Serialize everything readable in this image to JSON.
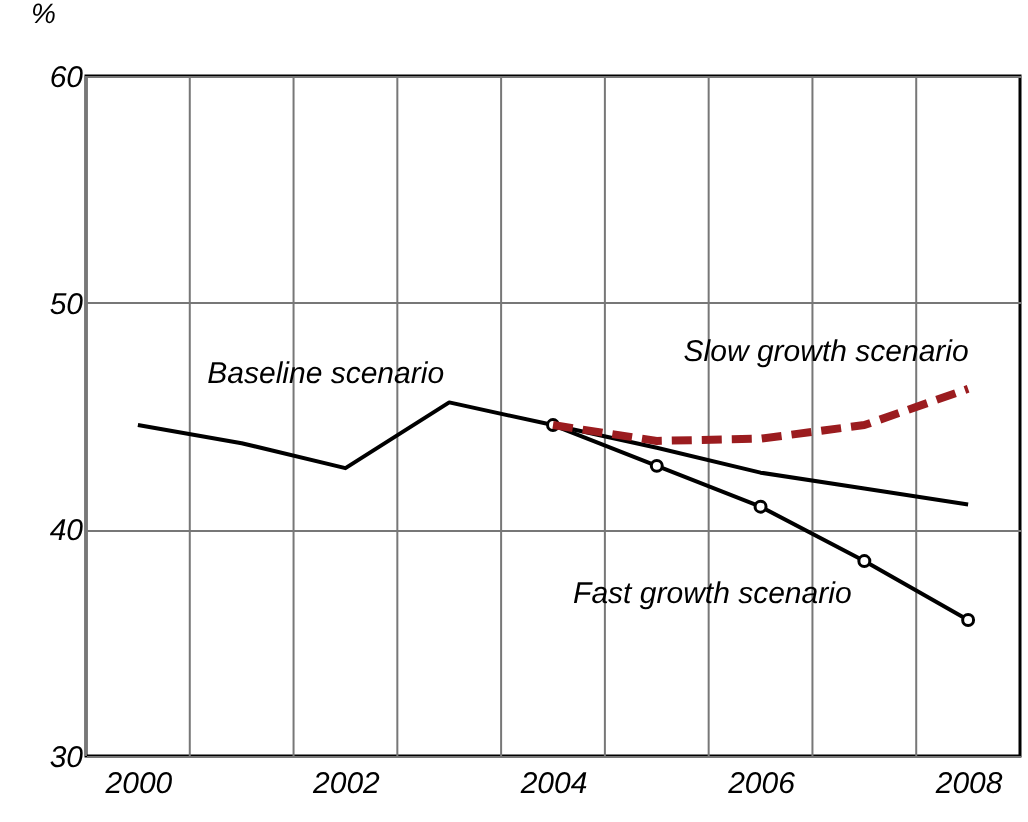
{
  "chart_data": {
    "type": "line",
    "ylabel": "%",
    "xlim": [
      1999.5,
      2008.5
    ],
    "xticks": [
      {
        "value": 1999.5,
        "label": null
      },
      {
        "value": 2000,
        "label": "2000"
      },
      {
        "value": 2000.5,
        "label": null
      },
      {
        "value": 2001.5,
        "label": null
      },
      {
        "value": 2002,
        "label": "2002"
      },
      {
        "value": 2002.5,
        "label": null
      },
      {
        "value": 2003.5,
        "label": null
      },
      {
        "value": 2004,
        "label": "2004"
      },
      {
        "value": 2004.5,
        "label": null
      },
      {
        "value": 2005.5,
        "label": null
      },
      {
        "value": 2006,
        "label": "2006"
      },
      {
        "value": 2006.5,
        "label": null
      },
      {
        "value": 2007.5,
        "label": null
      },
      {
        "value": 2008,
        "label": "2008"
      }
    ],
    "ylim": [
      30,
      60
    ],
    "yticks": [
      30,
      40,
      50,
      60
    ],
    "grid": true,
    "x": [
      2000,
      2001,
      2002,
      2003,
      2004,
      2005,
      2006,
      2007,
      2008
    ],
    "series": [
      {
        "name": "Baseline scenario",
        "color": "#000000",
        "line_style": "solid",
        "marker": "none",
        "values": [
          44.6,
          43.8,
          42.7,
          45.6,
          44.6,
          43.6,
          42.5,
          41.8,
          41.1
        ]
      },
      {
        "name": "Fast growth scenario",
        "color": "#000000",
        "line_style": "solid",
        "marker": "circle",
        "values": [
          null,
          null,
          null,
          null,
          44.6,
          42.8,
          41.0,
          38.6,
          36.0
        ]
      },
      {
        "name": "Slow growth scenario",
        "color": "#9b1c1f",
        "line_style": "dashed",
        "marker": "none",
        "values": [
          null,
          null,
          null,
          null,
          44.6,
          43.9,
          44.0,
          44.6,
          46.2
        ]
      }
    ]
  }
}
